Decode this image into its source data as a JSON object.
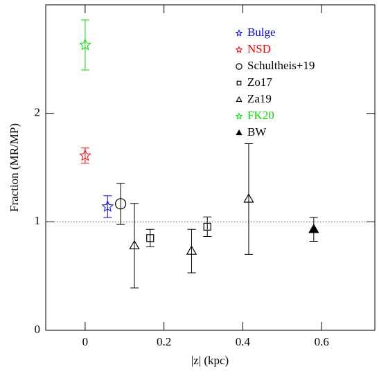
{
  "chart_data": {
    "type": "scatter",
    "x_label": "|z| (kpc)",
    "y_label": "Fraction (MR/MP)",
    "xlim": [
      -0.1,
      0.735
    ],
    "ylim": [
      0,
      3.0
    ],
    "xticks": [
      0,
      0.2,
      0.4,
      0.6
    ],
    "yticks": [
      0,
      1,
      2
    ],
    "reference_line": 1,
    "legend": "upper right",
    "series": [
      {
        "name": "Bulge",
        "color": "#0000ff",
        "marker": "star",
        "x": [
          0.057
        ],
        "values": [
          1.14
        ],
        "errors": [
          0.1
        ]
      },
      {
        "name": "NSD",
        "color": "#ff0000",
        "marker": "star",
        "x": [
          0
        ],
        "values": [
          1.61
        ],
        "errors": [
          0.07
        ]
      },
      {
        "name": "Schultheis+19",
        "color": "#000000",
        "marker": "circle",
        "x": [
          0.09
        ],
        "values": [
          1.166
        ],
        "errors": [
          0.19
        ]
      },
      {
        "name": "Zo17",
        "color": "#000000",
        "marker": "square",
        "x": [
          0.165,
          0.31
        ],
        "values": [
          0.85,
          0.955
        ],
        "errors": [
          0.08,
          0.09
        ]
      },
      {
        "name": "Za19",
        "color": "#000000",
        "marker": "triangle",
        "x": [
          0.125,
          0.27,
          0.415
        ],
        "values": [
          0.78,
          0.73,
          1.21
        ],
        "errors": [
          0.39,
          0.2,
          0.51
        ]
      },
      {
        "name": "FK20",
        "color": "#00dd00",
        "marker": "star",
        "x": [
          0
        ],
        "values": [
          2.63
        ],
        "errors": [
          0.23
        ]
      },
      {
        "name": "BW",
        "color": "#000000",
        "marker": "filled-triangle",
        "x": [
          0.58
        ],
        "values": [
          0.93
        ],
        "errors": [
          0.11
        ]
      }
    ]
  }
}
